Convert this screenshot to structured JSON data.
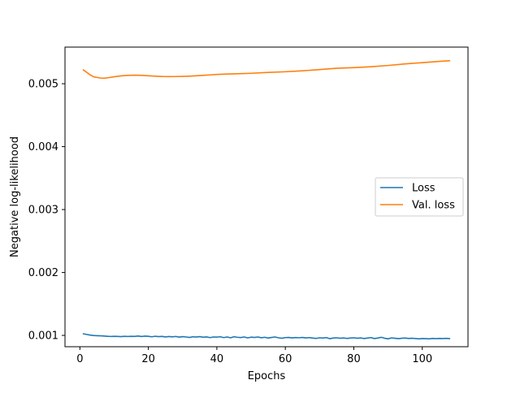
{
  "chart_data": {
    "type": "line",
    "title": "",
    "xlabel": "Epochs",
    "ylabel": "Negative log-likelihood",
    "xlim": [
      -4.35,
      113.35
    ],
    "ylim": [
      0.00082,
      0.005582
    ],
    "xticks": [
      0,
      20,
      40,
      60,
      80,
      100
    ],
    "yticks": [
      0.001,
      0.002,
      0.003,
      0.004,
      0.005
    ],
    "ytick_labels": [
      "0.001",
      "0.002",
      "0.003",
      "0.004",
      "0.005"
    ],
    "grid": false,
    "legend_position": "center-right",
    "series": [
      {
        "name": "Loss",
        "color": "#1f77b4",
        "x": [
          1,
          2,
          3,
          4,
          5,
          6,
          7,
          8,
          9,
          10,
          11,
          12,
          13,
          14,
          15,
          16,
          17,
          18,
          19,
          20,
          21,
          22,
          23,
          24,
          25,
          26,
          27,
          28,
          29,
          30,
          31,
          32,
          33,
          34,
          35,
          36,
          37,
          38,
          39,
          40,
          41,
          42,
          43,
          44,
          45,
          46,
          47,
          48,
          49,
          50,
          51,
          52,
          53,
          54,
          55,
          56,
          57,
          58,
          59,
          60,
          61,
          62,
          63,
          64,
          65,
          66,
          67,
          68,
          69,
          70,
          71,
          72,
          73,
          74,
          75,
          76,
          77,
          78,
          79,
          80,
          81,
          82,
          83,
          84,
          85,
          86,
          87,
          88,
          89,
          90,
          91,
          92,
          93,
          94,
          95,
          96,
          97,
          98,
          99,
          100,
          101,
          102,
          103,
          104,
          105,
          106,
          107,
          108
        ],
        "y": [
          0.001025,
          0.001015,
          0.001005,
          0.000998,
          0.000995,
          0.000993,
          0.00099,
          0.000986,
          0.000983,
          0.000985,
          0.000984,
          0.000981,
          0.000985,
          0.000983,
          0.000986,
          0.000984,
          0.00099,
          0.000982,
          0.000988,
          0.000985,
          0.000978,
          0.000986,
          0.00098,
          0.000984,
          0.000976,
          0.000982,
          0.000977,
          0.000983,
          0.000972,
          0.00098,
          0.000975,
          0.000968,
          0.000978,
          0.000974,
          0.00098,
          0.000971,
          0.000976,
          0.000965,
          0.000975,
          0.000973,
          0.000978,
          0.000965,
          0.000975,
          0.000962,
          0.000978,
          0.00097,
          0.000966,
          0.000975,
          0.00096,
          0.000972,
          0.000968,
          0.000975,
          0.000963,
          0.00097,
          0.000958,
          0.000968,
          0.000975,
          0.000962,
          0.000955,
          0.000965,
          0.000968,
          0.00096,
          0.000966,
          0.000962,
          0.000968,
          0.00096,
          0.000965,
          0.000958,
          0.000952,
          0.000962,
          0.000958,
          0.000965,
          0.000948,
          0.000958,
          0.000962,
          0.000955,
          0.00096,
          0.000952,
          0.000958,
          0.000962,
          0.000955,
          0.00096,
          0.00095,
          0.000958,
          0.000965,
          0.00095,
          0.000958,
          0.00097,
          0.000955,
          0.000945,
          0.00096,
          0.000955,
          0.000948,
          0.000955,
          0.000958,
          0.000952,
          0.000955,
          0.00095,
          0.000945,
          0.00095,
          0.000948,
          0.000945,
          0.000952,
          0.000948,
          0.000952,
          0.00095,
          0.000953,
          0.000948
        ]
      },
      {
        "name": "Val. loss",
        "color": "#ff7f0e",
        "x": [
          1,
          2,
          3,
          4,
          5,
          6,
          7,
          8,
          10,
          12,
          14,
          16,
          18,
          20,
          22,
          24,
          26,
          28,
          30,
          32,
          34,
          36,
          38,
          40,
          42,
          45,
          48,
          50,
          55,
          60,
          65,
          70,
          75,
          80,
          85,
          90,
          95,
          100,
          105,
          108
        ],
        "y": [
          0.00522,
          0.00518,
          0.00514,
          0.00511,
          0.0051,
          0.00509,
          0.005088,
          0.005093,
          0.00511,
          0.005125,
          0.005133,
          0.005136,
          0.005133,
          0.005126,
          0.00512,
          0.005115,
          0.005113,
          0.005114,
          0.005116,
          0.00512,
          0.005126,
          0.005133,
          0.00514,
          0.005147,
          0.005152,
          0.005157,
          0.005162,
          0.005166,
          0.00518,
          0.00519,
          0.005205,
          0.005225,
          0.005245,
          0.005255,
          0.00527,
          0.00529,
          0.005315,
          0.005335,
          0.005355,
          0.005365
        ]
      }
    ]
  }
}
